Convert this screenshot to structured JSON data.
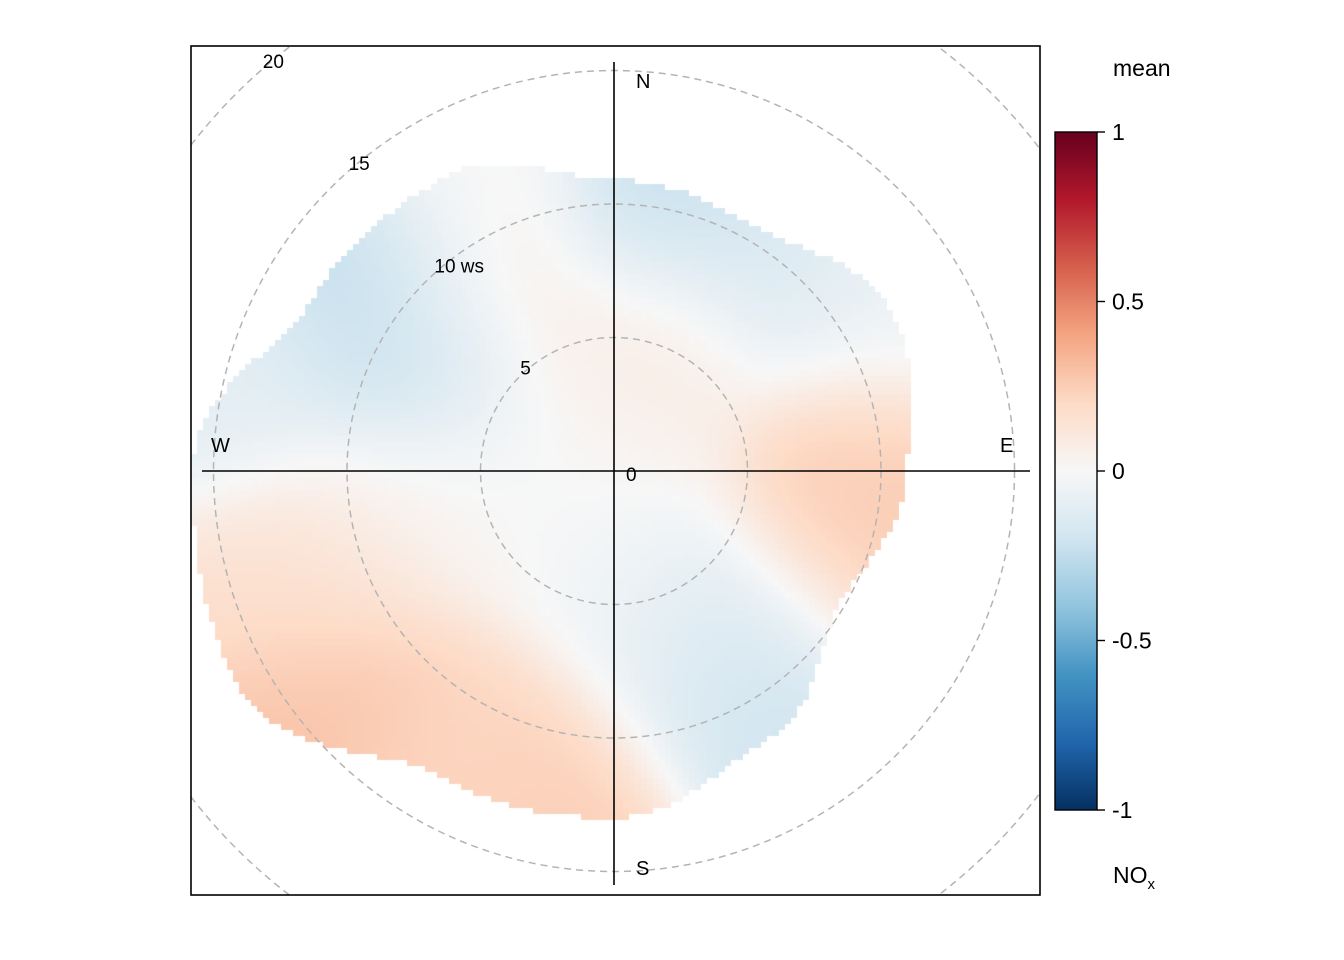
{
  "chart_data": {
    "type": "heatmap",
    "subtype": "polar-plot",
    "radial_variable": "ws",
    "radial_range": [
      0,
      20
    ],
    "rings": [
      {
        "value": 5,
        "label": "5"
      },
      {
        "value": 10,
        "label": "10 ws"
      },
      {
        "value": 15,
        "label": "15"
      },
      {
        "value": 20,
        "label": "20"
      }
    ],
    "center_label": "0",
    "directions": {
      "north": "N",
      "east": "E",
      "south": "S",
      "west": "W"
    },
    "colorbar": {
      "title": "mean",
      "range": [
        -1,
        1
      ],
      "ticks": [
        {
          "value": 1,
          "label": "1"
        },
        {
          "value": 0.5,
          "label": "0.5"
        },
        {
          "value": 0,
          "label": "0"
        },
        {
          "value": -0.5,
          "label": "-0.5"
        },
        {
          "value": -1,
          "label": "-1"
        }
      ],
      "colors": [
        "#053061",
        "#2166ac",
        "#4393c3",
        "#92c5de",
        "#d1e5f0",
        "#f7f7f7",
        "#fddbc7",
        "#f4a582",
        "#d6604d",
        "#b2182b",
        "#67001f"
      ]
    },
    "pollutant": {
      "main": "NO",
      "subscript": "x"
    },
    "data_extent_ws_by_direction": [
      {
        "dir": 0,
        "ws": 10.9
      },
      {
        "dir": 30,
        "ws": 10.6
      },
      {
        "dir": 60,
        "ws": 12.0
      },
      {
        "dir": 90,
        "ws": 11.0
      },
      {
        "dir": 120,
        "ws": 9.8
      },
      {
        "dir": 150,
        "ws": 11.6
      },
      {
        "dir": 180,
        "ws": 13.0
      },
      {
        "dir": 210,
        "ws": 13.2
      },
      {
        "dir": 240,
        "ws": 16.2
      },
      {
        "dir": 270,
        "ws": 15.8
      },
      {
        "dir": 300,
        "ws": 13.0
      },
      {
        "dir": 330,
        "ws": 12.7
      }
    ],
    "mean_field": [
      {
        "dir": 10,
        "ws": 9.5,
        "value": -0.25
      },
      {
        "dir": 40,
        "ws": 9.5,
        "value": -0.15
      },
      {
        "dir": 15,
        "ws": 4.7,
        "value": 0.15
      },
      {
        "dir": 335,
        "ws": 13,
        "value": 0.0
      },
      {
        "dir": 310,
        "ws": 11,
        "value": -0.3
      },
      {
        "dir": 300,
        "ws": 8,
        "value": -0.25
      },
      {
        "dir": 325,
        "ws": 8.5,
        "value": 0.15
      },
      {
        "dir": 285,
        "ws": 14,
        "value": -0.1
      },
      {
        "dir": 90,
        "ws": 9.5,
        "value": 0.25
      },
      {
        "dir": 105,
        "ws": 9,
        "value": 0.25
      },
      {
        "dir": 145,
        "ws": 8.5,
        "value": -0.22
      },
      {
        "dir": 155,
        "ws": 6.5,
        "value": -0.1
      },
      {
        "dir": 230,
        "ws": 13.5,
        "value": 0.3
      },
      {
        "dir": 250,
        "ws": 12,
        "value": 0.15
      },
      {
        "dir": 195,
        "ws": 12,
        "value": 0.25
      },
      {
        "dir": 210,
        "ws": 12,
        "value": 0.2
      },
      {
        "dir": 260,
        "ws": 8,
        "value": 0.05
      },
      {
        "dir": 0,
        "ws": 2,
        "value": 0.0
      },
      {
        "dir": 180,
        "ws": 4,
        "value": -0.02
      },
      {
        "dir": 270,
        "ws": 4,
        "value": 0.0
      },
      {
        "dir": 60,
        "ws": 12,
        "value": -0.05
      }
    ],
    "grid": false,
    "legend_position": "right"
  }
}
